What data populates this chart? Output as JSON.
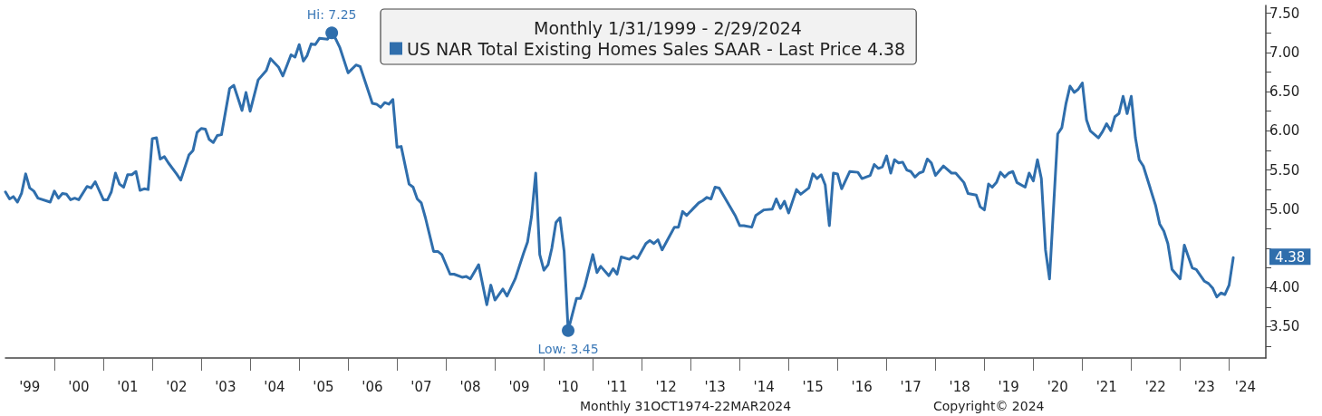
{
  "chart_data": {
    "type": "line",
    "title": "Monthly 1/31/1999 - 2/29/2024",
    "legend": "top",
    "grid": false,
    "marker": "none",
    "line_style": "solid",
    "xlim": [
      "1999-01",
      "2024-10"
    ],
    "ylim": [
      3.1,
      7.6
    ],
    "xticks": [
      {
        "value": "2000",
        "label": null
      },
      {
        "value": "2001",
        "label": null
      },
      {
        "value": "2002",
        "label": null
      },
      {
        "value": "2003",
        "label": null
      },
      {
        "value": "2004",
        "label": null
      },
      {
        "value": "2005",
        "label": null
      },
      {
        "value": "2006",
        "label": null
      },
      {
        "value": "2007",
        "label": null
      },
      {
        "value": "2008",
        "label": null
      },
      {
        "value": "2009",
        "label": null
      },
      {
        "value": "2010",
        "label": null
      },
      {
        "value": "2011",
        "label": null
      },
      {
        "value": "2012",
        "label": null
      },
      {
        "value": "2013",
        "label": null
      },
      {
        "value": "2014",
        "label": null
      },
      {
        "value": "2015",
        "label": null
      },
      {
        "value": "2016",
        "label": null
      },
      {
        "value": "2017",
        "label": null
      },
      {
        "value": "2018",
        "label": null
      },
      {
        "value": "2019",
        "label": null
      },
      {
        "value": "2020",
        "label": null
      },
      {
        "value": "2021",
        "label": null
      },
      {
        "value": "2022",
        "label": null
      },
      {
        "value": "2023",
        "label": null
      },
      {
        "value": "2024",
        "label": null
      },
      {
        "value": "1999-07",
        "label": "'99"
      },
      {
        "value": "2000-07",
        "label": "'00"
      },
      {
        "value": "2001-07",
        "label": "'01"
      },
      {
        "value": "2002-07",
        "label": "'02"
      },
      {
        "value": "2003-07",
        "label": "'03"
      },
      {
        "value": "2004-07",
        "label": "'04"
      },
      {
        "value": "2005-07",
        "label": "'05"
      },
      {
        "value": "2006-07",
        "label": "'06"
      },
      {
        "value": "2007-07",
        "label": "'07"
      },
      {
        "value": "2008-07",
        "label": "'08"
      },
      {
        "value": "2009-07",
        "label": "'09"
      },
      {
        "value": "2010-07",
        "label": "'10"
      },
      {
        "value": "2011-07",
        "label": "'11"
      },
      {
        "value": "2012-07",
        "label": "'12"
      },
      {
        "value": "2013-07",
        "label": "'13"
      },
      {
        "value": "2014-07",
        "label": "'14"
      },
      {
        "value": "2015-07",
        "label": "'15"
      },
      {
        "value": "2016-07",
        "label": "'16"
      },
      {
        "value": "2017-07",
        "label": "'17"
      },
      {
        "value": "2018-07",
        "label": "'18"
      },
      {
        "value": "2019-07",
        "label": "'19"
      },
      {
        "value": "2020-07",
        "label": "'20"
      },
      {
        "value": "2021-07",
        "label": "'21"
      },
      {
        "value": "2022-07",
        "label": "'22"
      },
      {
        "value": "2023-07",
        "label": "'23"
      },
      {
        "value": "2024-05",
        "label": "'24"
      }
    ],
    "yticks": [
      {
        "value": 3.25,
        "label": null
      },
      {
        "value": 3.5,
        "label": "3.50"
      },
      {
        "value": 3.75,
        "label": null
      },
      {
        "value": 4,
        "label": "4.00"
      },
      {
        "value": 4.25,
        "label": null
      },
      {
        "value": 4.5,
        "label": null
      },
      {
        "value": 4.75,
        "label": null
      },
      {
        "value": 5,
        "label": "5.00"
      },
      {
        "value": 5.25,
        "label": null
      },
      {
        "value": 5.5,
        "label": "5.50"
      },
      {
        "value": 5.75,
        "label": null
      },
      {
        "value": 6,
        "label": "6.00"
      },
      {
        "value": 6.25,
        "label": null
      },
      {
        "value": 6.5,
        "label": "6.50"
      },
      {
        "value": 6.75,
        "label": null
      },
      {
        "value": 7,
        "label": "7.00"
      },
      {
        "value": 7.25,
        "label": null
      },
      {
        "value": 7.5,
        "label": "7.50"
      }
    ],
    "annotations": [
      {
        "text": "Hi: 7.25",
        "x": "2005-09",
        "y": 7.25
      },
      {
        "text": "Low: 3.45",
        "x": "2010-07",
        "y": 3.45
      },
      "4.38",
      "Monthly 31OCT1974-22MAR2024",
      "Copyright© 2024"
    ],
    "series": [
      {
        "name": "US NAR Total Existing Homes Sales SAAR - Last Price 4.38",
        "color": "#2f6eac",
        "x": [
          "1999-01",
          "1999-02",
          "1999-03",
          "1999-04",
          "1999-05",
          "1999-06",
          "1999-07",
          "1999-08",
          "1999-09",
          "1999-12",
          "2000-01",
          "2000-02",
          "2000-03",
          "2000-04",
          "2000-05",
          "2000-06",
          "2000-07",
          "2000-09",
          "2000-10",
          "2000-11",
          "2001-01",
          "2001-02",
          "2001-03",
          "2001-04",
          "2001-05",
          "2001-06",
          "2001-07",
          "2001-08",
          "2001-09",
          "2001-10",
          "2001-11",
          "2001-12",
          "2002-01",
          "2002-02",
          "2002-03",
          "2002-04",
          "2002-05",
          "2002-07",
          "2002-08",
          "2002-10",
          "2002-11",
          "2002-12",
          "2003-01",
          "2003-02",
          "2003-03",
          "2003-04",
          "2003-05",
          "2003-06",
          "2003-08",
          "2003-09",
          "2003-11",
          "2003-12",
          "2004-01",
          "2004-03",
          "2004-05",
          "2004-06",
          "2004-08",
          "2004-09",
          "2004-10",
          "2004-11",
          "2004-12",
          "2005-01",
          "2005-02",
          "2005-03",
          "2005-04",
          "2005-05",
          "2005-06",
          "2005-08",
          "2005-09",
          "2005-10",
          "2005-11",
          "2006-01",
          "2006-03",
          "2006-04",
          "2006-07",
          "2006-08",
          "2006-09",
          "2006-10",
          "2006-11",
          "2006-12",
          "2007-01",
          "2007-02",
          "2007-04",
          "2007-05",
          "2007-06",
          "2007-07",
          "2007-08",
          "2007-10",
          "2007-11",
          "2007-12",
          "2008-02",
          "2008-03",
          "2008-05",
          "2008-06",
          "2008-07",
          "2008-09",
          "2008-11",
          "2008-12",
          "2009-01",
          "2009-03",
          "2009-04",
          "2009-06",
          "2009-08",
          "2009-09",
          "2009-10",
          "2009-11",
          "2009-12",
          "2010-01",
          "2010-02",
          "2010-03",
          "2010-04",
          "2010-05",
          "2010-06",
          "2010-07",
          "2010-09",
          "2010-10",
          "2010-11",
          "2011-01",
          "2011-02",
          "2011-03",
          "2011-05",
          "2011-06",
          "2011-07",
          "2011-08",
          "2011-10",
          "2011-11",
          "2011-12",
          "2012-02",
          "2012-03",
          "2012-04",
          "2012-05",
          "2012-06",
          "2012-09",
          "2012-10",
          "2012-11",
          "2012-12",
          "2013-03",
          "2013-04",
          "2013-05",
          "2013-06",
          "2013-07",
          "2013-08",
          "2013-10",
          "2013-12",
          "2014-01",
          "2014-02",
          "2014-04",
          "2014-05",
          "2014-07",
          "2014-09",
          "2014-10",
          "2014-11",
          "2014-12",
          "2015-01",
          "2015-03",
          "2015-04",
          "2015-06",
          "2015-07",
          "2015-08",
          "2015-09",
          "2015-10",
          "2015-11",
          "2015-12",
          "2016-01",
          "2016-02",
          "2016-04",
          "2016-06",
          "2016-07",
          "2016-09",
          "2016-10",
          "2016-11",
          "2016-12",
          "2017-01",
          "2017-02",
          "2017-03",
          "2017-04",
          "2017-05",
          "2017-06",
          "2017-07",
          "2017-08",
          "2017-09",
          "2017-10",
          "2017-11",
          "2017-12",
          "2018-01",
          "2018-03",
          "2018-05",
          "2018-06",
          "2018-08",
          "2018-09",
          "2018-11",
          "2018-12",
          "2019-01",
          "2019-02",
          "2019-03",
          "2019-04",
          "2019-05",
          "2019-06",
          "2019-07",
          "2019-08",
          "2019-09",
          "2019-11",
          "2019-12",
          "2020-01",
          "2020-02",
          "2020-03",
          "2020-04",
          "2020-05",
          "2020-07",
          "2020-08",
          "2020-09",
          "2020-10",
          "2020-11",
          "2020-12",
          "2021-01",
          "2021-02",
          "2021-03",
          "2021-05",
          "2021-06",
          "2021-07",
          "2021-08",
          "2021-09",
          "2021-10",
          "2021-11",
          "2021-12",
          "2022-01",
          "2022-02",
          "2022-03",
          "2022-04",
          "2022-07",
          "2022-08",
          "2022-09",
          "2022-10",
          "2022-11",
          "2023-01",
          "2023-02",
          "2023-04",
          "2023-05",
          "2023-07",
          "2023-08",
          "2023-09",
          "2023-10",
          "2023-11",
          "2023-12",
          "2024-01",
          "2024-02"
        ],
        "values": [
          5.22,
          5.13,
          5.16,
          5.09,
          5.2,
          5.45,
          5.27,
          5.23,
          5.14,
          5.09,
          5.23,
          5.14,
          5.2,
          5.19,
          5.12,
          5.14,
          5.12,
          5.29,
          5.27,
          5.35,
          5.12,
          5.12,
          5.22,
          5.46,
          5.32,
          5.28,
          5.44,
          5.44,
          5.48,
          5.24,
          5.26,
          5.25,
          5.9,
          5.91,
          5.64,
          5.67,
          5.59,
          5.45,
          5.37,
          5.69,
          5.75,
          5.98,
          6.03,
          6.02,
          5.89,
          5.85,
          5.94,
          5.95,
          6.54,
          6.58,
          6.26,
          6.49,
          6.25,
          6.65,
          6.77,
          6.92,
          6.81,
          6.7,
          6.83,
          6.97,
          6.94,
          7.1,
          6.89,
          6.96,
          7.11,
          7.1,
          7.18,
          7.17,
          7.25,
          7.17,
          7.06,
          6.74,
          6.84,
          6.82,
          6.35,
          6.34,
          6.3,
          6.36,
          6.34,
          6.4,
          5.79,
          5.8,
          5.32,
          5.28,
          5.13,
          5.08,
          4.89,
          4.46,
          4.46,
          4.42,
          4.17,
          4.17,
          4.13,
          4.14,
          4.11,
          4.29,
          3.78,
          4.03,
          3.84,
          3.98,
          3.89,
          4.11,
          4.43,
          4.58,
          4.91,
          5.46,
          4.42,
          4.22,
          4.29,
          4.5,
          4.83,
          4.89,
          4.46,
          3.45,
          3.86,
          3.86,
          4.01,
          4.42,
          4.19,
          4.27,
          4.15,
          4.24,
          4.17,
          4.39,
          4.36,
          4.4,
          4.37,
          4.56,
          4.6,
          4.56,
          4.61,
          4.48,
          4.77,
          4.77,
          4.97,
          4.92,
          5.08,
          5.11,
          5.15,
          5.13,
          5.28,
          5.27,
          5.09,
          4.91,
          4.79,
          4.79,
          4.77,
          4.92,
          4.99,
          5,
          5.13,
          5.01,
          5.1,
          4.95,
          5.25,
          5.19,
          5.27,
          5.45,
          5.39,
          5.44,
          5.31,
          4.79,
          5.46,
          5.45,
          5.26,
          5.48,
          5.47,
          5.39,
          5.43,
          5.57,
          5.52,
          5.54,
          5.68,
          5.46,
          5.63,
          5.59,
          5.6,
          5.5,
          5.48,
          5.41,
          5.46,
          5.48,
          5.64,
          5.59,
          5.43,
          5.55,
          5.46,
          5.46,
          5.34,
          5.2,
          5.18,
          5.03,
          4.99,
          5.32,
          5.28,
          5.34,
          5.47,
          5.41,
          5.46,
          5.48,
          5.34,
          5.28,
          5.46,
          5.36,
          5.63,
          5.39,
          4.48,
          4.11,
          5.96,
          6.04,
          6.35,
          6.57,
          6.49,
          6.53,
          6.61,
          6.14,
          6,
          5.91,
          5.99,
          6.09,
          6,
          6.18,
          6.22,
          6.44,
          6.22,
          6.44,
          5.91,
          5.63,
          5.55,
          5.05,
          4.81,
          4.72,
          4.56,
          4.23,
          4.11,
          4.54,
          4.25,
          4.23,
          4.08,
          4.05,
          3.99,
          3.88,
          3.93,
          3.91,
          4.03,
          4.38
        ]
      }
    ]
  }
}
